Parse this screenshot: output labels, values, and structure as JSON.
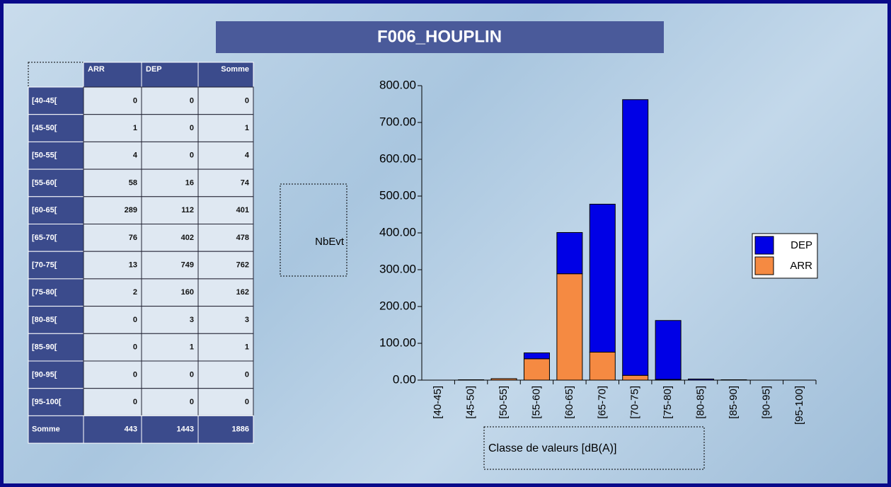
{
  "title": "F006_HOUPLIN",
  "table": {
    "header": [
      "ARR",
      "DEP",
      "Somme"
    ],
    "rows": [
      [
        "[40-45[",
        0,
        0,
        0
      ],
      [
        "[45-50[",
        1,
        0,
        1
      ],
      [
        "[50-55[",
        4,
        0,
        4
      ],
      [
        "[55-60[",
        58,
        16,
        74
      ],
      [
        "[60-65[",
        289,
        112,
        401
      ],
      [
        "[65-70[",
        76,
        402,
        478
      ],
      [
        "[70-75[",
        13,
        749,
        762
      ],
      [
        "[75-80[",
        2,
        160,
        162
      ],
      [
        "[80-85[",
        0,
        3,
        3
      ],
      [
        "[85-90[",
        0,
        1,
        1
      ],
      [
        "[90-95[",
        0,
        0,
        0
      ],
      [
        "[95-100[",
        0,
        0,
        0
      ]
    ],
    "footer": [
      "Somme",
      443,
      1443,
      1886
    ]
  },
  "chart_data": {
    "type": "stacked-bar",
    "ylabel": "NbEvt",
    "xlabel": "Classe de valeurs [dB(A)]",
    "categories": [
      "[40-45]",
      "[45-50]",
      "[50-55]",
      "[55-60]",
      "[60-65]",
      "[65-70]",
      "[70-75]",
      "[75-80]",
      "[80-85]",
      "[85-90]",
      "[90-95]",
      "[95-100]"
    ],
    "series": [
      {
        "name": "ARR",
        "color": "#f58a42",
        "values": [
          0,
          1,
          4,
          58,
          289,
          76,
          13,
          2,
          0,
          0,
          0,
          0
        ]
      },
      {
        "name": "DEP",
        "color": "#0000e6",
        "values": [
          0,
          0,
          0,
          16,
          112,
          402,
          749,
          160,
          3,
          1,
          0,
          0
        ]
      }
    ],
    "ylim": [
      0,
      800
    ],
    "yticks": [
      {
        "value": 0,
        "label": "0.00"
      },
      {
        "value": 100,
        "label": "100.00"
      },
      {
        "value": 200,
        "label": "200.00"
      },
      {
        "value": 300,
        "label": "300.00"
      },
      {
        "value": 400,
        "label": "400.00"
      },
      {
        "value": 500,
        "label": "500.00"
      },
      {
        "value": 600,
        "label": "600.00"
      },
      {
        "value": 700,
        "label": "700.00"
      },
      {
        "value": 800,
        "label": "800.00"
      }
    ],
    "legend": "right"
  }
}
